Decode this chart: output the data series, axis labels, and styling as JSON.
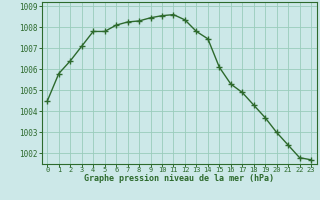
{
  "x": [
    0,
    1,
    2,
    3,
    4,
    5,
    6,
    7,
    8,
    9,
    10,
    11,
    12,
    13,
    14,
    15,
    16,
    17,
    18,
    19,
    20,
    21,
    22,
    23
  ],
  "y": [
    1004.5,
    1005.8,
    1006.4,
    1007.1,
    1007.8,
    1007.8,
    1008.1,
    1008.25,
    1008.3,
    1008.45,
    1008.55,
    1008.6,
    1008.35,
    1007.8,
    1007.45,
    1006.1,
    1005.3,
    1004.9,
    1004.3,
    1003.7,
    1003.0,
    1002.4,
    1001.8,
    1001.7
  ],
  "line_color": "#2d6a2d",
  "marker": "+",
  "marker_size": 4,
  "bg_color": "#cce8e8",
  "grid_color": "#99ccbb",
  "xlabel": "Graphe pression niveau de la mer (hPa)",
  "xlabel_color": "#2d6a2d",
  "tick_color": "#2d6a2d",
  "ylim": [
    1001.5,
    1009.2
  ],
  "yticks": [
    1002,
    1003,
    1004,
    1005,
    1006,
    1007,
    1008,
    1009
  ],
  "xlim": [
    -0.5,
    23.5
  ]
}
